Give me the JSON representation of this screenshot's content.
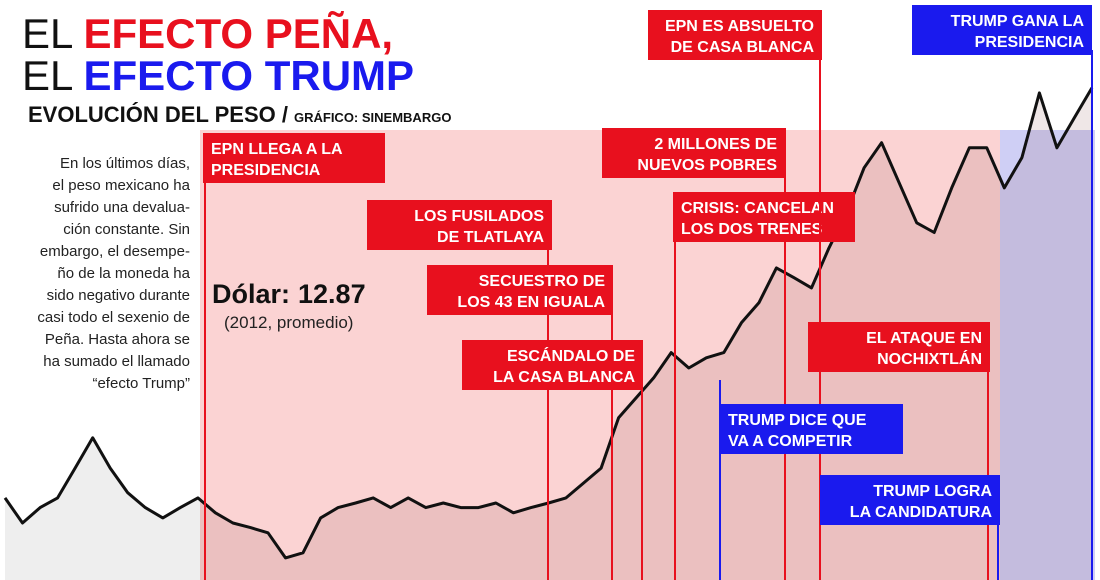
{
  "chart_data": {
    "type": "line",
    "title": {
      "line1": [
        "EL ",
        "EFECTO PEÑA,"
      ],
      "line2": [
        "EL ",
        "EFECTO TRUMP"
      ]
    },
    "subtitle": "EVOLUCIÓN DEL PESO /",
    "source": "GRÁFICO: SINEMBARGO",
    "body": [
      "En los últimos días,",
      "el peso mexicano ha",
      "sufrido una devalua-",
      "ción constante. Sin",
      "embargo, el desempe-",
      "ño de la moneda ha",
      "sido negativo durante",
      "casi todo el sexenio de",
      "Peña. Hasta ahora se",
      "ha sumado el llamado",
      "“efecto Trump”"
    ],
    "callout": {
      "label": "Dólar:",
      "value": 12.87,
      "note": "(2012, promedio)"
    },
    "color": "#111111",
    "ylim": [
      11.3,
      22.6
    ],
    "values": [
      12.9,
      12.41,
      12.71,
      12.9,
      13.48,
      14.07,
      13.48,
      13.0,
      12.71,
      12.51,
      12.71,
      12.9,
      12.61,
      12.41,
      12.32,
      12.22,
      11.73,
      11.83,
      12.51,
      12.71,
      12.8,
      12.9,
      12.71,
      12.9,
      12.71,
      12.8,
      12.71,
      12.71,
      12.8,
      12.61,
      12.71,
      12.8,
      12.9,
      13.19,
      13.48,
      14.46,
      14.85,
      15.24,
      15.73,
      15.43,
      15.63,
      15.73,
      16.31,
      16.7,
      17.38,
      17.19,
      16.99,
      17.77,
      18.46,
      19.33,
      19.82,
      19.04,
      18.26,
      18.07,
      18.94,
      19.72,
      19.72,
      18.94,
      19.53,
      20.79,
      19.72,
      20.31,
      20.89
    ],
    "annotations": [
      [
        "EPN LLEGA A LA",
        "PRESIDENCIA"
      ],
      [
        "LOS FUSILADOS",
        "DE TLATLAYA"
      ],
      [
        "SECUESTRO  DE",
        "LOS 43 EN IGUALA"
      ],
      [
        "ESCÁNDALO DE",
        "LA CASA BLANCA"
      ],
      [
        "2 MILLONES DE",
        "NUEVOS POBRES"
      ],
      [
        "CRISIS: CANCELAN",
        "LOS DOS TRENES"
      ],
      [
        "EPN ES ABSUELTO",
        "DE CASA BLANCA"
      ],
      [
        "EL ATAQUE EN",
        "NOCHIXTLÁN"
      ],
      [
        "TRUMP DICE QUE",
        "VA A COMPETIR"
      ],
      [
        "TRUMP LOGRA",
        "LA CANDIDATURA"
      ],
      [
        "TRUMP GANA LA",
        "PRESIDENCIA"
      ]
    ]
  }
}
